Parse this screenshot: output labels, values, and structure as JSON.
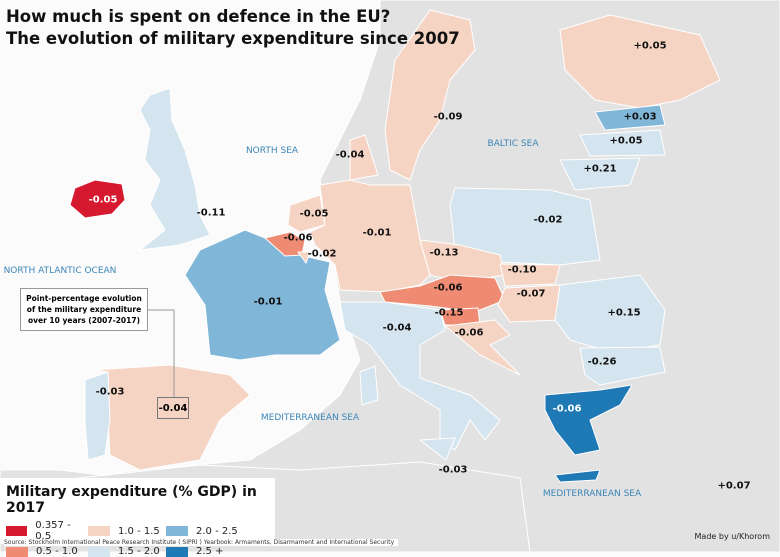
{
  "title": {
    "line1": "How much is spent on defence in the EU?",
    "line2": "The evolution of military expenditure since 2007"
  },
  "colors": {
    "sea": "#fbfbfb",
    "land": "#e2e2e2",
    "c1": "#d6192f",
    "c2": "#ef8b72",
    "c3": "#f6d4c4",
    "c4": "#d5e5ef",
    "c5": "#80b6d8",
    "c6": "#1f79b5"
  },
  "seas": {
    "north_sea": "NORTH SEA",
    "baltic_sea": "BALTIC SEA",
    "north_atlantic": "NORTH ATLANTIC OCEAN",
    "med1": "MEDITERRANEAN SEA",
    "med2": "MEDITERRANEAN SEA"
  },
  "countries": {
    "ireland": "-0.05",
    "uk": "-0.11",
    "france": "-0.01",
    "spain": "-0.04",
    "portugal": "-0.03",
    "belgium": "-0.06",
    "luxembourg": "-0.02",
    "netherlands": "-0.05",
    "germany": "-0.01",
    "denmark": "-0.04",
    "sweden": "-0.09",
    "finland": "+0.05",
    "estonia": "+0.03",
    "latvia": "+0.05",
    "lithuania": "+0.21",
    "poland": "-0.02",
    "czechia": "-0.13",
    "slovakia": "-0.10",
    "austria": "-0.06",
    "hungary": "-0.07",
    "slovenia": "-0.15",
    "croatia": "-0.06",
    "italy": "-0.04",
    "romania": "+0.15",
    "bulgaria": "-0.26",
    "greece": "-0.06",
    "malta": "-0.03",
    "cyprus": "+0.07"
  },
  "note": "Point-percentage evolution of the military expenditure over 10 years (2007-2017)",
  "legend": {
    "title": "Military expenditure (% GDP) in 2017",
    "items": [
      "0.357 - 0.5",
      "1.0 - 1.5",
      "2.0 - 2.5",
      "0.5 - 1.0",
      "1.5 - 2.0",
      "2.5 +"
    ]
  },
  "source": "Source: Stockholm International Peace Research Institute ( SIPRI ) Yearbook: Armaments, Disarmament and International Security",
  "credit": "Made by u/Khorom"
}
